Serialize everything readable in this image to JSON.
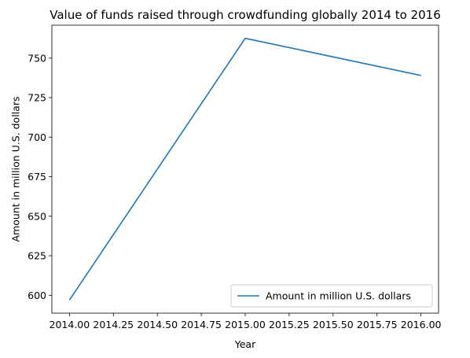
{
  "chart_data": {
    "type": "line",
    "title": "Value of funds raised through crowdfunding globally 2014 to 2016",
    "xlabel": "Year",
    "ylabel": "Amount in million U.S. dollars",
    "x": [
      2014,
      2015,
      2016
    ],
    "series": [
      {
        "name": "Amount in million U.S. dollars",
        "values": [
          597,
          762.5,
          739
        ],
        "color": "#1f77b4"
      }
    ],
    "xlim": [
      2013.9,
      2016.1
    ],
    "ylim": [
      588.7,
      770.8
    ],
    "xticks": [
      "2014.00",
      "2014.25",
      "2014.50",
      "2014.75",
      "2015.00",
      "2015.25",
      "2015.50",
      "2015.75",
      "2016.00"
    ],
    "yticks": [
      "600",
      "625",
      "650",
      "675",
      "700",
      "725",
      "750"
    ],
    "legend_position": "bottom-right",
    "grid": false
  }
}
